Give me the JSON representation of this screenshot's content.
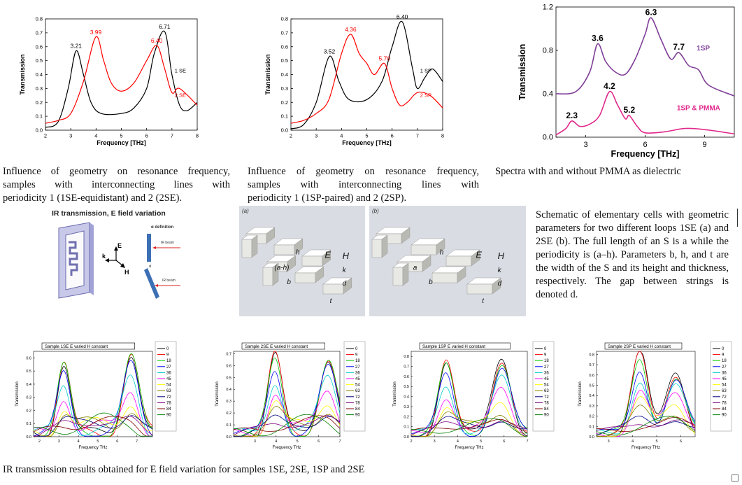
{
  "top_charts": [
    {
      "type": "line",
      "xlabel": "Frequency [THz]",
      "ylabel": "Transmission",
      "xlim": [
        2,
        8
      ],
      "ylim": [
        0,
        0.8
      ],
      "xticks": [
        "2",
        "3",
        "4",
        "5",
        "6",
        "7",
        "8"
      ],
      "yticks": [
        "0.0",
        "0.1",
        "0.2",
        "0.3",
        "0.4",
        "0.5",
        "0.6",
        "0.7",
        "0.8"
      ],
      "series": [
        {
          "name": "1 SE",
          "color": "#000000",
          "x": [
            2,
            2.5,
            2.9,
            3.21,
            3.5,
            3.8,
            4.2,
            5,
            5.5,
            6,
            6.3,
            6.71,
            7,
            7.3,
            7.6,
            8
          ],
          "y": [
            0.02,
            0.06,
            0.3,
            0.57,
            0.4,
            0.2,
            0.12,
            0.12,
            0.16,
            0.3,
            0.55,
            0.71,
            0.4,
            0.18,
            0.14,
            0.2
          ]
        },
        {
          "name": "2 SE",
          "color": "#ff0000",
          "x": [
            2,
            2.5,
            3,
            3.5,
            3.99,
            4.3,
            4.6,
            5,
            5.5,
            6,
            6.4,
            6.7,
            7,
            7.3,
            8
          ],
          "y": [
            0.05,
            0.07,
            0.12,
            0.35,
            0.67,
            0.5,
            0.34,
            0.28,
            0.34,
            0.5,
            0.61,
            0.45,
            0.27,
            0.3,
            0.18
          ]
        }
      ],
      "annotations": [
        {
          "text": "3.21",
          "x": 3.21,
          "y": 0.57,
          "color": "#000000"
        },
        {
          "text": "3.99",
          "x": 3.99,
          "y": 0.67,
          "color": "#ff0000"
        },
        {
          "text": "6.40",
          "x": 6.4,
          "y": 0.61,
          "color": "#ff0000"
        },
        {
          "text": "6.71",
          "x": 6.71,
          "y": 0.71,
          "color": "#000000"
        }
      ]
    },
    {
      "type": "line",
      "xlabel": "Frequency [THz]",
      "ylabel": "Transmission",
      "xlim": [
        2,
        8
      ],
      "ylim": [
        0,
        0.8
      ],
      "xticks": [
        "2",
        "3",
        "4",
        "5",
        "6",
        "7",
        "8"
      ],
      "yticks": [
        "0.0",
        "0.1",
        "0.2",
        "0.3",
        "0.4",
        "0.5",
        "0.6",
        "0.7",
        "0.8"
      ],
      "series": [
        {
          "name": "1 SP",
          "color": "#000000",
          "x": [
            2,
            2.5,
            3,
            3.52,
            3.9,
            4.3,
            5,
            5.6,
            6,
            6.4,
            6.8,
            7,
            7.3,
            7.6,
            8
          ],
          "y": [
            0.01,
            0.04,
            0.2,
            0.53,
            0.35,
            0.22,
            0.22,
            0.35,
            0.6,
            0.78,
            0.45,
            0.3,
            0.38,
            0.44,
            0.35
          ]
        },
        {
          "name": "2 SP",
          "color": "#ff0000",
          "x": [
            2,
            2.5,
            3,
            3.5,
            4,
            4.36,
            4.7,
            5,
            5.3,
            5.7,
            6,
            6.3,
            6.6,
            7,
            7.5,
            8
          ],
          "y": [
            0.05,
            0.07,
            0.12,
            0.22,
            0.55,
            0.69,
            0.55,
            0.48,
            0.4,
            0.48,
            0.3,
            0.18,
            0.2,
            0.27,
            0.25,
            0.16
          ]
        }
      ],
      "annotations": [
        {
          "text": "3.52",
          "x": 3.52,
          "y": 0.53,
          "color": "#000000"
        },
        {
          "text": "4.36",
          "x": 4.36,
          "y": 0.69,
          "color": "#ff0000"
        },
        {
          "text": "5.70",
          "x": 5.7,
          "y": 0.48,
          "color": "#ff0000"
        },
        {
          "text": "6.40",
          "x": 6.4,
          "y": 0.78,
          "color": "#000000"
        }
      ]
    },
    {
      "type": "line",
      "xlabel": "Frequency [THz]",
      "ylabel": "Transmission",
      "xlim": [
        1.5,
        10.5
      ],
      "ylim": [
        0,
        1.2
      ],
      "xticks": [
        "3",
        "6",
        "9"
      ],
      "yticks": [
        "0.0",
        "0.4",
        "0.8",
        "1.2"
      ],
      "series": [
        {
          "name": "1SP",
          "color": "#7f3f98",
          "x": [
            1.5,
            2.5,
            3.2,
            3.6,
            4,
            4.5,
            5,
            5.5,
            6,
            6.3,
            6.8,
            7.3,
            7.7,
            8.2,
            8.7,
            9.2,
            10.5
          ],
          "y": [
            0.4,
            0.42,
            0.6,
            0.86,
            0.7,
            0.6,
            0.58,
            0.72,
            0.95,
            1.1,
            0.9,
            0.72,
            0.78,
            0.66,
            0.62,
            0.48,
            0.38
          ]
        },
        {
          "name": "1SP & PMMA",
          "color": "#e0288c",
          "x": [
            1.5,
            2,
            2.3,
            2.7,
            3.2,
            3.7,
            4.2,
            4.6,
            5,
            5.2,
            5.6,
            6,
            7,
            8,
            9,
            10.5
          ],
          "y": [
            0.02,
            0.08,
            0.15,
            0.1,
            0.12,
            0.2,
            0.42,
            0.3,
            0.17,
            0.2,
            0.1,
            0.04,
            0.05,
            0.08,
            0.07,
            0.03
          ]
        }
      ],
      "annotations": [
        {
          "text": "3.6",
          "x": 3.6,
          "y": 0.86,
          "color": "#000000"
        },
        {
          "text": "6.3",
          "x": 6.3,
          "y": 1.1,
          "color": "#000000"
        },
        {
          "text": "7.7",
          "x": 7.7,
          "y": 0.78,
          "color": "#000000"
        },
        {
          "text": "2.3",
          "x": 2.3,
          "y": 0.15,
          "color": "#000000"
        },
        {
          "text": "4.2",
          "x": 4.2,
          "y": 0.42,
          "color": "#000000"
        },
        {
          "text": "5.2",
          "x": 5.2,
          "y": 0.2,
          "color": "#000000"
        }
      ]
    }
  ],
  "captions": {
    "c1": [
      "Influence of geometry on resonance frequency,",
      "samples with interconnecting lines with",
      "periodicity 1 (1SE-equidistant) and 2 (2SE)."
    ],
    "c2": [
      "Influence of geometry on resonance frequency,",
      "samples with interconnecting lines with",
      "periodicity 1 (1SP-paired) and 2 (2SP)."
    ],
    "c3": "Spectra with and without PMMA as dielectric",
    "schematic": "Schematic of elementary cells with geometric parameters for two different loops 1SE (a) and 2SE (b). The full length of an S is a while the periodicity is (a–h). Parameters b, h, and t are the width of the S and its height and thickness, respectively. The gap between strings is denoted d.",
    "bottom": "IR transmission results obtained for E field variation for samples 1SE, 2SE, 1SP and 2SE"
  },
  "ir_figure": {
    "title": "IR transmission, E field variation",
    "alpha_def": "α definition",
    "beam1": "IR beam",
    "beam2": "IR beam",
    "alpha": "α",
    "k": "k",
    "E": "E",
    "H": "H"
  },
  "cells": {
    "a": {
      "tag": "(a)",
      "labels": [
        "E",
        "H",
        "k",
        "d",
        "h",
        "(a-h)",
        "b",
        "t"
      ]
    },
    "b": {
      "tag": "(b)",
      "labels": [
        "E",
        "H",
        "k",
        "d",
        "h",
        "a",
        "b",
        "t"
      ]
    }
  },
  "small_charts": {
    "legend": [
      "0",
      "9",
      "18",
      "27",
      "36",
      "45",
      "54",
      "63",
      "72",
      "78",
      "84",
      "90"
    ],
    "colors": [
      "#000000",
      "#ff0000",
      "#00cc00",
      "#0000ff",
      "#00cccc",
      "#ff00ff",
      "#ffff00",
      "#808000",
      "#000080",
      "#800080",
      "#800000",
      "#008000"
    ],
    "xlabel": "Frequency THz",
    "ylabel": "Transmission",
    "charts": [
      {
        "header": "Sample 1SE     E varied H constant",
        "xlim": [
          1.7,
          7.8
        ],
        "ylim": [
          0,
          0.65
        ],
        "xticks": [
          "2",
          "3",
          "4",
          "5",
          "6",
          "7"
        ],
        "yticks": [
          "0.0",
          "0.1",
          "0.2",
          "0.3",
          "0.4",
          "0.5",
          "0.6"
        ],
        "p1": 3.25,
        "p2": 6.7,
        "a1": 0.55,
        "a2": 0.63
      },
      {
        "header": "Sample 2SE     E varied H constant",
        "xlim": [
          2,
          7
        ],
        "ylim": [
          0,
          0.72
        ],
        "xticks": [
          "3",
          "4",
          "5",
          "6",
          "7"
        ],
        "yticks": [
          "0.0",
          "0.1",
          "0.2",
          "0.3",
          "0.4",
          "0.5",
          "0.6",
          "0.7"
        ],
        "p1": 3.95,
        "p2": 6.45,
        "a1": 0.67,
        "a2": 0.66
      },
      {
        "header": "Sample 1SP     E varied H constant",
        "xlim": [
          2,
          7
        ],
        "ylim": [
          0,
          0.85
        ],
        "xticks": [
          "2",
          "3",
          "4",
          "5",
          "6",
          "7"
        ],
        "yticks": [
          "0.0",
          "0.1",
          "0.2",
          "0.3",
          "0.4",
          "0.5",
          "0.6",
          "0.7",
          "0.8"
        ],
        "p1": 3.5,
        "p2": 5.9,
        "a1": 0.73,
        "a2": 0.78
      },
      {
        "header": "Sample 2SP     E varied H constant",
        "xlim": [
          2.5,
          6.6
        ],
        "ylim": [
          0,
          0.83
        ],
        "xticks": [
          "3",
          "4",
          "5",
          "6"
        ],
        "yticks": [
          "0.0",
          "0.1",
          "0.2",
          "0.3",
          "0.4",
          "0.5",
          "0.6",
          "0.7",
          "0.8"
        ],
        "p1": 4.3,
        "p2": 5.8,
        "a1": 0.79,
        "a2": 0.62
      }
    ]
  }
}
